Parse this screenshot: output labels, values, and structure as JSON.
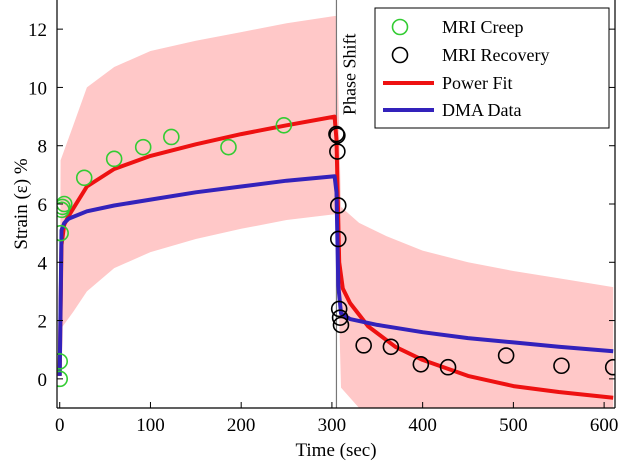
{
  "chart_data": {
    "type": "line",
    "xlabel": "Time (sec)",
    "ylabel": "Strain (ε) %",
    "xlim": [
      -3,
      612
    ],
    "ylim": [
      -1.0,
      13.0
    ],
    "xticks": [
      0,
      100,
      200,
      300,
      400,
      500,
      600
    ],
    "yticks": [
      0,
      2,
      4,
      6,
      8,
      10,
      12
    ],
    "grid": false,
    "legend_position": "top-right",
    "annotation": {
      "text": "Phase Shift",
      "x": 305
    },
    "colors": {
      "creep": "#33cc33",
      "recovery": "#000000",
      "power_fit": "#ee1111",
      "dma": "#3322bb",
      "band": "#ffc8c8"
    },
    "confidence_band": {
      "x": [
        0,
        1,
        15,
        30,
        60,
        100,
        150,
        200,
        250,
        303,
        305,
        310,
        330,
        360,
        400,
        450,
        500,
        550,
        610
      ],
      "upper": [
        0.5,
        7.5,
        8.7,
        10.0,
        10.7,
        11.25,
        11.6,
        11.9,
        12.2,
        12.45,
        12.45,
        5.9,
        5.35,
        4.9,
        4.4,
        4.0,
        3.7,
        3.45,
        3.15
      ],
      "lower": [
        0.0,
        1.7,
        2.3,
        3.0,
        3.8,
        4.35,
        4.8,
        5.15,
        5.45,
        5.65,
        5.65,
        -0.3,
        -1.0,
        -1.0,
        -1.0,
        -1.0,
        -1.0,
        -1.0,
        -1.0
      ]
    },
    "series": [
      {
        "name": "MRI Creep",
        "kind": "scatter",
        "x": [
          0,
          0,
          1,
          2,
          3,
          5,
          27,
          60,
          92,
          123,
          186,
          247
        ],
        "y": [
          0.0,
          0.6,
          5.0,
          5.8,
          5.9,
          6.0,
          6.9,
          7.55,
          7.95,
          8.3,
          7.95,
          8.7
        ]
      },
      {
        "name": "MRI Recovery",
        "kind": "scatter",
        "x": [
          305,
          306,
          306,
          307,
          307,
          308,
          309,
          310,
          335,
          365,
          398,
          428,
          492,
          553,
          610
        ],
        "y": [
          8.4,
          8.35,
          7.8,
          5.95,
          4.8,
          2.4,
          2.1,
          1.85,
          1.15,
          1.1,
          0.5,
          0.4,
          0.8,
          0.45,
          0.4
        ]
      },
      {
        "name": "Power Fit",
        "kind": "line",
        "x": [
          0,
          2,
          5,
          10,
          30,
          60,
          100,
          150,
          200,
          250,
          303,
          305,
          308,
          312,
          320,
          340,
          370,
          400,
          450,
          500,
          550,
          610
        ],
        "y": [
          0.1,
          4.6,
          5.3,
          5.6,
          6.6,
          7.2,
          7.65,
          8.05,
          8.4,
          8.7,
          9.0,
          8.2,
          4.0,
          3.1,
          2.6,
          1.8,
          1.1,
          0.65,
          0.1,
          -0.25,
          -0.45,
          -0.65
        ]
      },
      {
        "name": "DMA Data",
        "kind": "line",
        "x": [
          0,
          2,
          5,
          10,
          30,
          60,
          100,
          150,
          200,
          250,
          303,
          305,
          307,
          310,
          320,
          350,
          400,
          450,
          500,
          550,
          610
        ],
        "y": [
          0.1,
          5.1,
          5.35,
          5.5,
          5.75,
          5.95,
          6.15,
          6.4,
          6.6,
          6.8,
          6.95,
          6.4,
          3.2,
          2.25,
          2.05,
          1.85,
          1.6,
          1.4,
          1.25,
          1.1,
          0.95
        ]
      }
    ]
  }
}
